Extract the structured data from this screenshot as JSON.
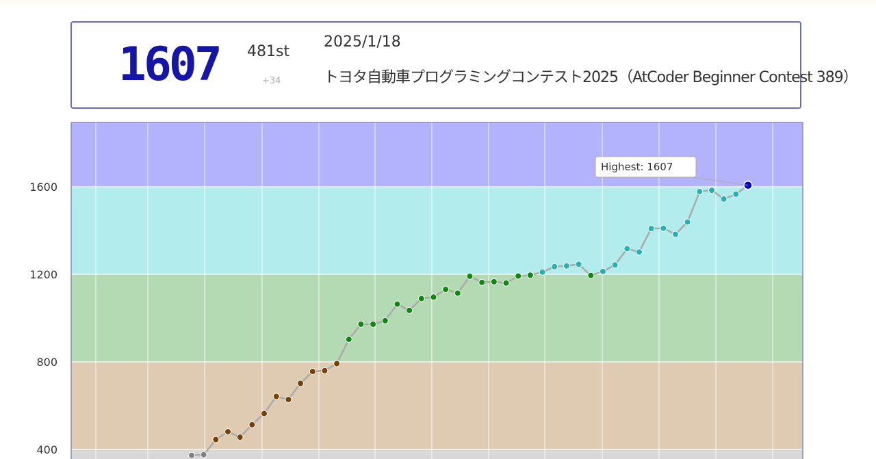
{
  "status": {
    "rating": "1607",
    "rank": "481st",
    "change": "+34",
    "date": "2025/1/18",
    "contest": "トヨタ自動車プログラミングコンテスト2025（AtCoder Beginner Contest 389）"
  },
  "chart_data": {
    "type": "line",
    "ytick_labels": [
      "1600",
      "1200",
      "800",
      "400"
    ],
    "yticks": [
      1600,
      1200,
      800,
      400
    ],
    "ylim": [
      330,
      1900
    ],
    "grid": true,
    "bands": [
      {
        "from": 1600,
        "to": 2000,
        "color": "#b3b3fd"
      },
      {
        "from": 1200,
        "to": 1600,
        "color": "#b2ecec"
      },
      {
        "from": 800,
        "to": 1200,
        "color": "#b4dab4"
      },
      {
        "from": 400,
        "to": 800,
        "color": "#dfcab2"
      },
      {
        "from": 0,
        "to": 400,
        "color": "#d8d8d8"
      }
    ],
    "point_colors": [
      {
        "min": 1600,
        "color": "#0000c8"
      },
      {
        "min": 1200,
        "color": "#26b2b2"
      },
      {
        "min": 800,
        "color": "#0b8a0b"
      },
      {
        "min": 400,
        "color": "#7b3f00"
      },
      {
        "min": 0,
        "color": "#808080"
      }
    ],
    "line_color": "#aaaaaa",
    "annotation": "Highest: 1607",
    "values": [
      373,
      376,
      445,
      481,
      456,
      513,
      564,
      642,
      628,
      702,
      756,
      760,
      792,
      903,
      972,
      972,
      988,
      1064,
      1035,
      1089,
      1096,
      1131,
      1114,
      1191,
      1163,
      1166,
      1160,
      1192,
      1196,
      1210,
      1235,
      1238,
      1246,
      1195,
      1213,
      1243,
      1317,
      1302,
      1409,
      1410,
      1383,
      1439,
      1578,
      1584,
      1544,
      1566,
      1607
    ]
  }
}
